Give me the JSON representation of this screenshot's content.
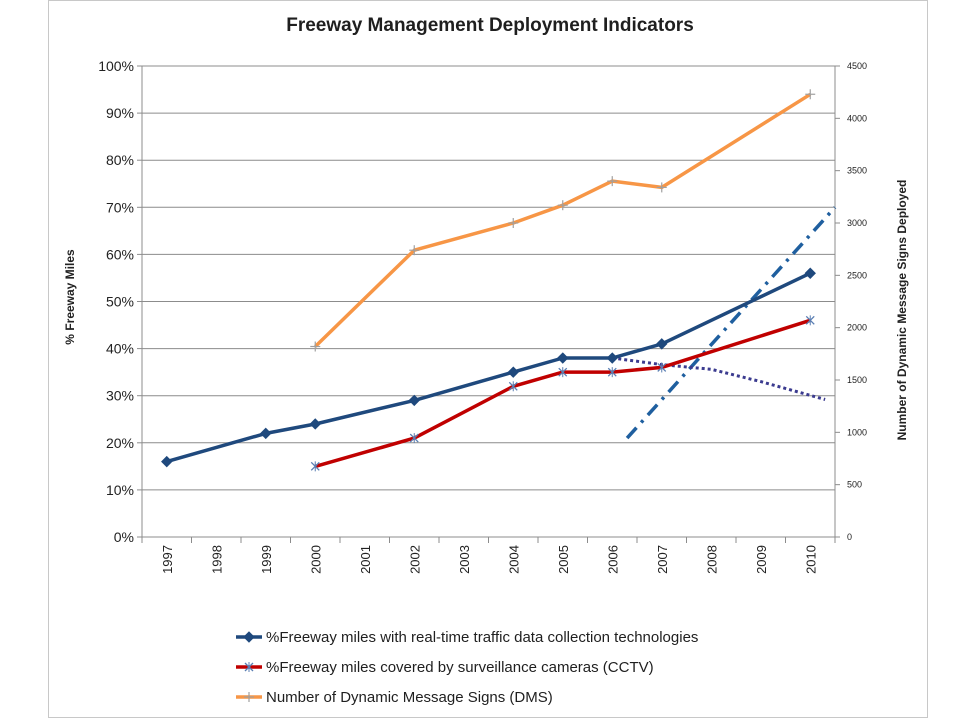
{
  "chart_data": {
    "type": "line",
    "title": "Freeway Management Deployment Indicators",
    "ylabel": "% Freeway Miles",
    "y2label": "Number of Dynamic Message Signs Deployed",
    "ylim": [
      0,
      1
    ],
    "y2lim": [
      0,
      4500
    ],
    "yticks": [
      "0%",
      "10%",
      "20%",
      "30%",
      "40%",
      "50%",
      "60%",
      "70%",
      "80%",
      "90%",
      "100%"
    ],
    "y2ticks": [
      "0",
      "500",
      "1000",
      "1500",
      "2000",
      "2500",
      "3000",
      "3500",
      "4000",
      "4500"
    ],
    "categories": [
      "1997",
      "1998",
      "1999",
      "2000",
      "2001",
      "2002",
      "2003",
      "2004",
      "2005",
      "2006",
      "2007",
      "2008",
      "2009",
      "2010"
    ],
    "grid": "horizontal",
    "legend_position": "bottom",
    "series": [
      {
        "name": "%Freeway miles with real-time traffic data collection technologies",
        "axis": "left",
        "color": "#1f497d",
        "marker": "diamond",
        "points": [
          {
            "x": "1997",
            "y": 0.16
          },
          {
            "x": "1999",
            "y": 0.22
          },
          {
            "x": "2000",
            "y": 0.24
          },
          {
            "x": "2002",
            "y": 0.29
          },
          {
            "x": "2004",
            "y": 0.35
          },
          {
            "x": "2005",
            "y": 0.38
          },
          {
            "x": "2006",
            "y": 0.38
          },
          {
            "x": "2007",
            "y": 0.41
          },
          {
            "x": "2010",
            "y": 0.56
          }
        ]
      },
      {
        "name": "%Freeway miles covered by surveillance cameras (CCTV)",
        "axis": "left",
        "color": "#c00000",
        "marker": "x",
        "points": [
          {
            "x": "2000",
            "y": 0.15
          },
          {
            "x": "2002",
            "y": 0.21
          },
          {
            "x": "2004",
            "y": 0.32
          },
          {
            "x": "2005",
            "y": 0.35
          },
          {
            "x": "2006",
            "y": 0.35
          },
          {
            "x": "2007",
            "y": 0.36
          },
          {
            "x": "2010",
            "y": 0.46
          }
        ]
      },
      {
        "name": "Number of Dynamic Message Signs (DMS)",
        "axis": "right",
        "color": "#f79646",
        "marker": "plus",
        "points": [
          {
            "x": "2000",
            "y": 1820
          },
          {
            "x": "2002",
            "y": 2740
          },
          {
            "x": "2004",
            "y": 3000
          },
          {
            "x": "2005",
            "y": 3170
          },
          {
            "x": "2006",
            "y": 3400
          },
          {
            "x": "2007",
            "y": 3340
          },
          {
            "x": "2010",
            "y": 4230
          }
        ]
      }
    ],
    "trendlines": [
      {
        "style": "dash-dot",
        "color": "#1f5f9f",
        "axis": "left",
        "points": [
          {
            "x": 2006.3,
            "y": 0.21
          },
          {
            "x": 2010.5,
            "y": 0.7
          }
        ]
      },
      {
        "style": "dotted",
        "color": "#3b3b8f",
        "axis": "left",
        "points": [
          {
            "x": 2006,
            "y": 0.38
          },
          {
            "x": 2007,
            "y": 0.366
          },
          {
            "x": 2008,
            "y": 0.356
          },
          {
            "x": 2009,
            "y": 0.33
          },
          {
            "x": 2010.3,
            "y": 0.292
          }
        ]
      }
    ]
  }
}
